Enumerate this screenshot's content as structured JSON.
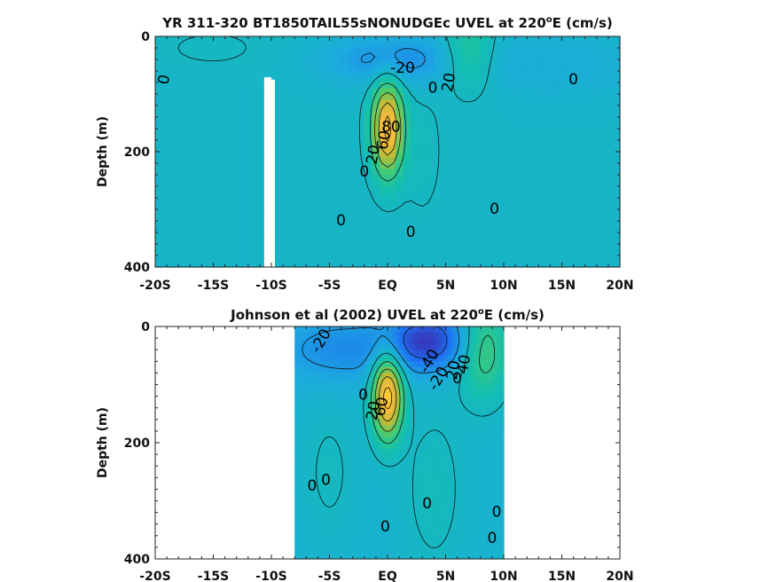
{
  "chart_data": [
    {
      "type": "heatmap",
      "title_main": "YR 311-320 BT1850TAIL55sNONUDGEc UVEL at 220",
      "title_sup": "o",
      "title_end": "E (cm/s)",
      "ylabel": "Depth (m)",
      "xlim": [
        -20,
        20
      ],
      "ylim": [
        0,
        400
      ],
      "x_ticks": [
        -20,
        -15,
        -10,
        -5,
        0,
        5,
        10,
        15,
        20
      ],
      "x_tick_labels": [
        "-20S",
        "-15S",
        "-10S",
        "-5S",
        "EQ",
        "5N",
        "10N",
        "15N",
        "20N"
      ],
      "y_ticks": [
        0,
        200,
        400
      ],
      "y_tick_labels": [
        "0",
        "200",
        "400"
      ],
      "colormap": [
        "#3e26a8",
        "#1e6ff3",
        "#1caadf",
        "#12bfb0",
        "#44cc72",
        "#bbbc37",
        "#f8ba3d",
        "#f9e21c"
      ],
      "data_range": [
        -60,
        100
      ],
      "background_value": -3,
      "gap_white": {
        "x": [
          -10.5,
          -9.7
        ],
        "y": [
          75,
          400
        ]
      },
      "features": [
        {
          "x": 0,
          "y": 160,
          "sx": 0.9,
          "sy": 55,
          "v": 90
        },
        {
          "x": 0.5,
          "y": 40,
          "sx": 4,
          "sy": 30,
          "v": -22
        },
        {
          "x": 7,
          "y": 30,
          "sx": 1.5,
          "sy": 45,
          "v": 25
        },
        {
          "x": 14,
          "y": 50,
          "sx": 6,
          "sy": 40,
          "v": -8
        },
        {
          "x": -15,
          "y": 20,
          "sx": 4,
          "sy": 30,
          "v": 4
        },
        {
          "x": 3,
          "y": 200,
          "sx": 1.2,
          "sy": 80,
          "v": 6
        }
      ],
      "contour_labels": [
        {
          "text": "-20",
          "x": 1.3,
          "y": 55,
          "rot": 0
        },
        {
          "text": "20",
          "x": 5.3,
          "y": 80,
          "rot": -80
        },
        {
          "text": "0",
          "x": -19.2,
          "y": 75,
          "rot": -80
        },
        {
          "text": "0",
          "x": 3.9,
          "y": 90,
          "rot": 0
        },
        {
          "text": "0",
          "x": 16,
          "y": 75,
          "rot": 0
        },
        {
          "text": "80",
          "x": 0.3,
          "y": 158,
          "rot": 0
        },
        {
          "text": "60",
          "x": -0.3,
          "y": 180,
          "rot": -80
        },
        {
          "text": "20",
          "x": -1.2,
          "y": 205,
          "rot": -80
        },
        {
          "text": "0",
          "x": -2,
          "y": 235,
          "rot": 0
        },
        {
          "text": "0",
          "x": -4,
          "y": 320,
          "rot": 0
        },
        {
          "text": "0",
          "x": 2,
          "y": 340,
          "rot": 0
        },
        {
          "text": "0",
          "x": 9.2,
          "y": 300,
          "rot": 0
        }
      ]
    },
    {
      "type": "heatmap",
      "title_main": "Johnson et al (2002) UVEL at 220",
      "title_sup": "o",
      "title_end": "E (cm/s)",
      "ylabel": "Depth (m)",
      "xlim": [
        -20,
        20
      ],
      "ylim": [
        0,
        400
      ],
      "x_ticks": [
        -20,
        -15,
        -10,
        -5,
        0,
        5,
        10,
        15,
        20
      ],
      "x_tick_labels": [
        "-20S",
        "-15S",
        "-10S",
        "-5S",
        "EQ",
        "5N",
        "10N",
        "15N",
        "20N"
      ],
      "y_ticks": [
        0,
        200,
        400
      ],
      "y_tick_labels": [
        "0",
        "200",
        "400"
      ],
      "colormap": [
        "#3e26a8",
        "#1e6ff3",
        "#1caadf",
        "#12bfb0",
        "#44cc72",
        "#bbbc37",
        "#f8ba3d",
        "#f9e21c"
      ],
      "data_range": [
        -60,
        100
      ],
      "background_value": -6,
      "data_extent_x": [
        -8,
        10
      ],
      "features": [
        {
          "x": 0,
          "y": 120,
          "sx": 0.9,
          "sy": 50,
          "v": 95
        },
        {
          "x": 3.5,
          "y": 25,
          "sx": 2.5,
          "sy": 35,
          "v": -45
        },
        {
          "x": -4,
          "y": 40,
          "sx": 4,
          "sy": 40,
          "v": -20
        },
        {
          "x": 8.3,
          "y": 40,
          "sx": 1.5,
          "sy": 60,
          "v": 35
        },
        {
          "x": -5,
          "y": 250,
          "sx": 1.5,
          "sy": 80,
          "v": 8
        },
        {
          "x": 4,
          "y": 280,
          "sx": 1.8,
          "sy": 100,
          "v": 10
        }
      ],
      "contour_labels": [
        {
          "text": "-20",
          "x": -5.7,
          "y": 25,
          "rot": -60
        },
        {
          "text": "-40",
          "x": 3.6,
          "y": 60,
          "rot": -60
        },
        {
          "text": "-20",
          "x": 4.4,
          "y": 90,
          "rot": -60
        },
        {
          "text": "40",
          "x": 6.6,
          "y": 65,
          "rot": -80
        },
        {
          "text": "20",
          "x": 5.7,
          "y": 75,
          "rot": -80
        },
        {
          "text": "0",
          "x": 6,
          "y": 90,
          "rot": 0
        },
        {
          "text": "0",
          "x": -2.1,
          "y": 118,
          "rot": 0
        },
        {
          "text": "20",
          "x": -1.2,
          "y": 145,
          "rot": -80
        },
        {
          "text": "60",
          "x": -0.5,
          "y": 138,
          "rot": -80
        },
        {
          "text": "0",
          "x": -6.5,
          "y": 275,
          "rot": 0
        },
        {
          "text": "0",
          "x": -5.3,
          "y": 265,
          "rot": 0
        },
        {
          "text": "0",
          "x": 3.4,
          "y": 305,
          "rot": 0
        },
        {
          "text": "0",
          "x": 9.4,
          "y": 320,
          "rot": 0
        },
        {
          "text": "0",
          "x": -0.2,
          "y": 345,
          "rot": 0
        },
        {
          "text": "0",
          "x": 9,
          "y": 365,
          "rot": 0
        }
      ]
    }
  ]
}
